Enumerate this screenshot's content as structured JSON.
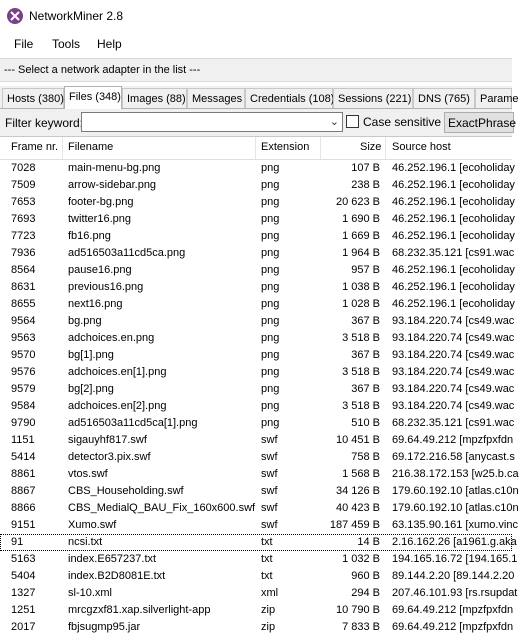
{
  "window": {
    "title": "NetworkMiner 2.8"
  },
  "menu": [
    "File",
    "Tools",
    "Help"
  ],
  "adapter_select": {
    "text": "--- Select a network adapter in the list ---"
  },
  "tabs": [
    {
      "label": "Hosts (380)"
    },
    {
      "label": "Files (348)",
      "active": true
    },
    {
      "label": "Images (88)"
    },
    {
      "label": "Messages"
    },
    {
      "label": "Credentials (108)"
    },
    {
      "label": "Sessions (221)"
    },
    {
      "label": "DNS (765)"
    },
    {
      "label": "Parame"
    }
  ],
  "filter": {
    "label": "Filter keyword:",
    "value": "",
    "case_sensitive_label": "Case sensitive",
    "case_sensitive_checked": false,
    "match_button": "ExactPhrase"
  },
  "files_table": {
    "columns": [
      "Frame nr.",
      "Filename",
      "Extension",
      "Size",
      "Source host"
    ],
    "rows": [
      [
        "7028",
        "main-menu-bg.png",
        "png",
        "107 B",
        "46.252.196.1 [ecoholiday"
      ],
      [
        "7509",
        "arrow-sidebar.png",
        "png",
        "238 B",
        "46.252.196.1 [ecoholiday"
      ],
      [
        "7653",
        "footer-bg.png",
        "png",
        "20 623 B",
        "46.252.196.1 [ecoholiday"
      ],
      [
        "7693",
        "twitter16.png",
        "png",
        "1 690 B",
        "46.252.196.1 [ecoholiday"
      ],
      [
        "7723",
        "fb16.png",
        "png",
        "1 669 B",
        "46.252.196.1 [ecoholiday"
      ],
      [
        "7936",
        "ad516503a11cd5ca.png",
        "png",
        "1 964 B",
        "68.232.35.121 [cs91.wac"
      ],
      [
        "8564",
        "pause16.png",
        "png",
        "957 B",
        "46.252.196.1 [ecoholiday"
      ],
      [
        "8631",
        "previous16.png",
        "png",
        "1 038 B",
        "46.252.196.1 [ecoholiday"
      ],
      [
        "8655",
        "next16.png",
        "png",
        "1 028 B",
        "46.252.196.1 [ecoholiday"
      ],
      [
        "9564",
        "bg.png",
        "png",
        "367 B",
        "93.184.220.74 [cs49.wac"
      ],
      [
        "9563",
        "adchoices.en.png",
        "png",
        "3 518 B",
        "93.184.220.74 [cs49.wac"
      ],
      [
        "9570",
        "bg[1].png",
        "png",
        "367 B",
        "93.184.220.74 [cs49.wac"
      ],
      [
        "9576",
        "adchoices.en[1].png",
        "png",
        "3 518 B",
        "93.184.220.74 [cs49.wac"
      ],
      [
        "9579",
        "bg[2].png",
        "png",
        "367 B",
        "93.184.220.74 [cs49.wac"
      ],
      [
        "9584",
        "adchoices.en[2].png",
        "png",
        "3 518 B",
        "93.184.220.74 [cs49.wac"
      ],
      [
        "9790",
        "ad516503a11cd5ca[1].png",
        "png",
        "510 B",
        "68.232.35.121 [cs91.wac"
      ],
      [
        "1151",
        "sigauyhf817.swf",
        "swf",
        "10 451 B",
        "69.64.49.212 [mpzfpxfdn"
      ],
      [
        "5414",
        "detector3.pix.swf",
        "swf",
        "758 B",
        "69.172.216.58 [anycast.s"
      ],
      [
        "8861",
        "vtos.swf",
        "swf",
        "1 568 B",
        "216.38.172.153 [w25.b.ca"
      ],
      [
        "8867",
        "CBS_Householding.swf",
        "swf",
        "34 126 B",
        "179.60.192.10 [atlas.c10n"
      ],
      [
        "8866",
        "CBS_MedialQ_BAU_Fix_160x600.swf",
        "swf",
        "40 423 B",
        "179.60.192.10 [atlas.c10n"
      ],
      [
        "9151",
        "Xumo.swf",
        "swf",
        "187 459 B",
        "63.135.90.161 [xumo.vinc"
      ],
      [
        "91",
        "ncsi.txt",
        "txt",
        "14 B",
        "2.16.162.26 [a1961.g.aka"
      ],
      [
        "5163",
        "index.E657237.txt",
        "txt",
        "1 032 B",
        "194.165.16.72 [194.165.1"
      ],
      [
        "5404",
        "index.B2D8081E.txt",
        "txt",
        "960 B",
        "89.144.2.20 [89.144.2.20"
      ],
      [
        "1327",
        "sl-10.xml",
        "xml",
        "294 B",
        "207.46.101.93 [rs.rsupdat"
      ],
      [
        "1251",
        "mrcgzxf81.xap.silverlight-app",
        "zip",
        "10 790 B",
        "69.64.49.212 [mpzfpxfdn"
      ],
      [
        "2017",
        "fbjsugmp95.jar",
        "zip",
        "7 833 B",
        "69.64.49.212 [mpzfpxfdn"
      ]
    ],
    "selected_row": 22
  }
}
